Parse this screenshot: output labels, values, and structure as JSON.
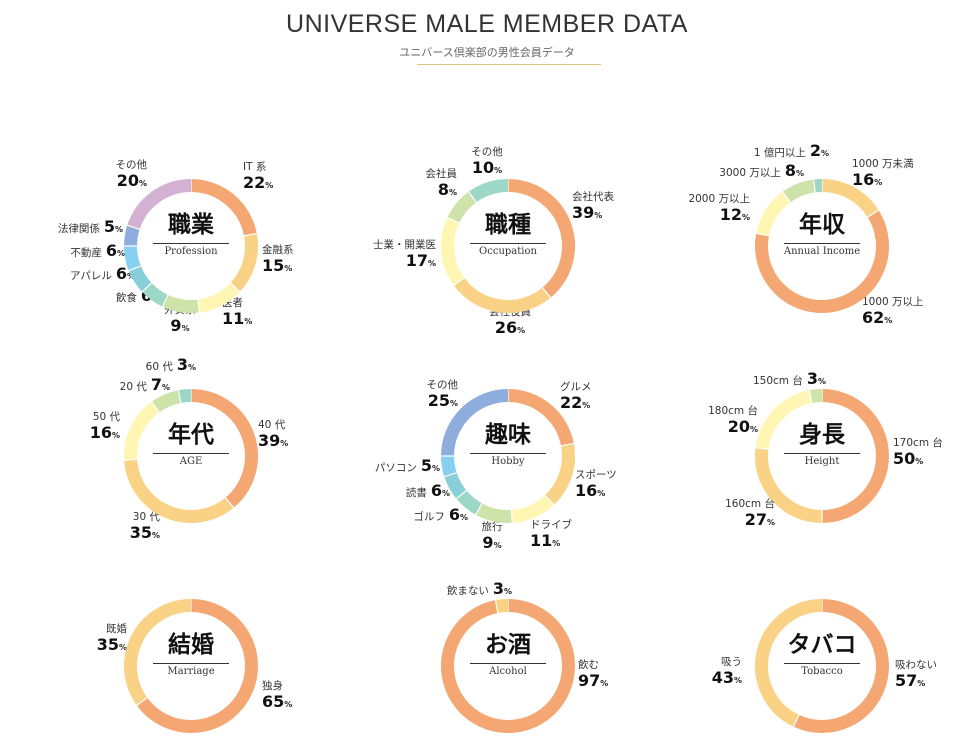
{
  "header": {
    "title": "UNIVERSE MALE MEMBER DATA",
    "subtitle": "ユニバース倶楽部の男性会員データ"
  },
  "colors": {
    "orange": "#F4A773",
    "light_orange": "#F9D285",
    "yellow": "#FEF6B2",
    "green": "#CDE3AA",
    "teal": "#9DD7C6",
    "cyan": "#88CFDA",
    "light_blue": "#88D0F0",
    "blue": "#8FADDC",
    "purple": "#D2B1D3"
  },
  "chart_data": [
    {
      "type": "pie",
      "title": "職業",
      "subtitle": "Profession",
      "slices": [
        {
          "label": "IT 系",
          "value": 22,
          "color": "#F4A773"
        },
        {
          "label": "金融系",
          "value": 15,
          "color": "#F9D285"
        },
        {
          "label": "医者",
          "value": 11,
          "color": "#FEF6B2"
        },
        {
          "label": "外資系",
          "value": 9,
          "color": "#CDE3AA"
        },
        {
          "label": "飲食",
          "value": 6,
          "color": "#9DD7C6"
        },
        {
          "label": "アパレル",
          "value": 6,
          "color": "#88CFDA"
        },
        {
          "label": "不動産",
          "value": 6,
          "color": "#88D0F0"
        },
        {
          "label": "法律関係",
          "value": 5,
          "color": "#8FADDC"
        },
        {
          "label": "その他",
          "value": 20,
          "color": "#D2B1D3"
        }
      ]
    },
    {
      "type": "pie",
      "title": "職種",
      "subtitle": "Occupation",
      "slices": [
        {
          "label": "会社代表",
          "value": 39,
          "color": "#F4A773"
        },
        {
          "label": "会社役員",
          "value": 26,
          "color": "#F9D285"
        },
        {
          "label": "士業・開業医",
          "value": 17,
          "color": "#FEF6B2"
        },
        {
          "label": "会社員",
          "value": 8,
          "color": "#CDE3AA"
        },
        {
          "label": "その他",
          "value": 10,
          "color": "#9DD7C6"
        }
      ]
    },
    {
      "type": "pie",
      "title": "年収",
      "subtitle": "Annual Income",
      "slices": [
        {
          "label": "1000 万未満",
          "value": 16,
          "color": "#F9D285"
        },
        {
          "label": "1000 万以上",
          "value": 62,
          "color": "#F4A773"
        },
        {
          "label": "2000 万以上",
          "value": 12,
          "color": "#FEF6B2"
        },
        {
          "label": "3000 万以上",
          "value": 8,
          "color": "#CDE3AA"
        },
        {
          "label": "1 億円以上",
          "value": 2,
          "color": "#9DD7C6"
        }
      ]
    },
    {
      "type": "pie",
      "title": "年代",
      "subtitle": "AGE",
      "slices": [
        {
          "label": "40 代",
          "value": 39,
          "color": "#F4A773"
        },
        {
          "label": "30 代",
          "value": 35,
          "color": "#F9D285"
        },
        {
          "label": "50 代",
          "value": 16,
          "color": "#FEF6B2"
        },
        {
          "label": "20 代",
          "value": 7,
          "color": "#CDE3AA"
        },
        {
          "label": "60 代",
          "value": 3,
          "color": "#9DD7C6"
        }
      ]
    },
    {
      "type": "pie",
      "title": "趣味",
      "subtitle": "Hobby",
      "slices": [
        {
          "label": "グルメ",
          "value": 22,
          "color": "#F4A773"
        },
        {
          "label": "スポーツ",
          "value": 16,
          "color": "#F9D285"
        },
        {
          "label": "ドライブ",
          "value": 11,
          "color": "#FEF6B2"
        },
        {
          "label": "旅行",
          "value": 9,
          "color": "#CDE3AA"
        },
        {
          "label": "ゴルフ",
          "value": 6,
          "color": "#9DD7C6"
        },
        {
          "label": "読書",
          "value": 6,
          "color": "#88CFDA"
        },
        {
          "label": "パソコン",
          "value": 5,
          "color": "#88D0F0"
        },
        {
          "label": "その他",
          "value": 25,
          "color": "#8FADDC"
        }
      ]
    },
    {
      "type": "pie",
      "title": "身長",
      "subtitle": "Height",
      "slices": [
        {
          "label": "170cm 台",
          "value": 50,
          "color": "#F4A773"
        },
        {
          "label": "160cm 台",
          "value": 27,
          "color": "#F9D285"
        },
        {
          "label": "180cm 台",
          "value": 20,
          "color": "#FEF6B2"
        },
        {
          "label": "150cm 台",
          "value": 3,
          "color": "#CDE3AA"
        }
      ]
    },
    {
      "type": "pie",
      "title": "結婚",
      "subtitle": "Marriage",
      "slices": [
        {
          "label": "独身",
          "value": 65,
          "color": "#F4A773"
        },
        {
          "label": "既婚",
          "value": 35,
          "color": "#F9D285"
        }
      ]
    },
    {
      "type": "pie",
      "title": "お酒",
      "subtitle": "Alcohol",
      "slices": [
        {
          "label": "飲む",
          "value": 97,
          "color": "#F4A773"
        },
        {
          "label": "飲まない",
          "value": 3,
          "color": "#F9D285"
        }
      ]
    },
    {
      "type": "pie",
      "title": "タバコ",
      "subtitle": "Tobacco",
      "slices": [
        {
          "label": "吸わない",
          "value": 57,
          "color": "#F4A773"
        },
        {
          "label": "吸う",
          "value": 43,
          "color": "#F9D285"
        }
      ]
    }
  ]
}
